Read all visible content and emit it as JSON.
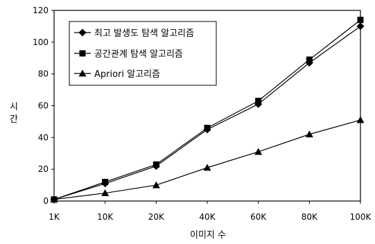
{
  "chart_data": {
    "type": "line",
    "title": "",
    "xlabel": "이미지 수",
    "ylabel": "시간",
    "categories": [
      "1K",
      "10K",
      "20K",
      "40K",
      "60K",
      "80K",
      "100K"
    ],
    "ylim": [
      0,
      120
    ],
    "yticks": [
      0,
      20,
      40,
      60,
      80,
      100,
      120
    ],
    "grid": false,
    "legend_position": "top-left",
    "series": [
      {
        "name": "최고 발생도 탐색 알고리즘",
        "marker": "diamond",
        "values": [
          1,
          11,
          22,
          45,
          61,
          87,
          110
        ]
      },
      {
        "name": "공간관계 탐색 알고리즘",
        "marker": "square",
        "values": [
          1,
          12,
          23,
          46,
          63,
          89,
          114
        ]
      },
      {
        "name": "Apriori 알고리즘",
        "marker": "triangle",
        "values": [
          1,
          5,
          10,
          21,
          31,
          42,
          51
        ]
      }
    ]
  }
}
